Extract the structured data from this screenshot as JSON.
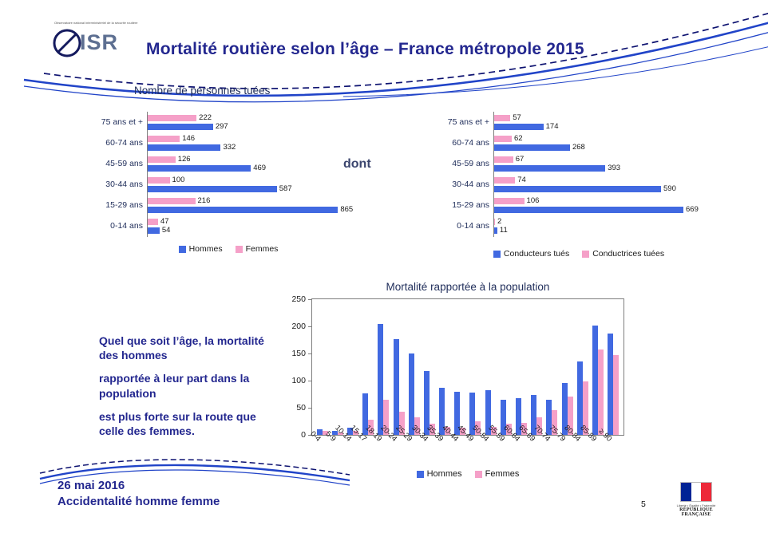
{
  "slide": {
    "logo": {
      "text": "ISR",
      "caption": "Observatoire national interministériel de la sécurité routière"
    },
    "title": "Mortalité routière selon l’âge – France métropole 2015",
    "dont_label": "dont",
    "commentary": [
      "Quel que soit l’âge, la mortalité des hommes",
      "rapportée à leur part dans la population",
      "est plus forte sur la route que celle des femmes."
    ],
    "footer": {
      "date": "26 mai 2016",
      "title": "Accidentalité homme femme",
      "page": "5"
    },
    "gov": {
      "motto": "Liberté • Égalité • Fraternité",
      "name": "RÉPUBLIQUE FRANÇAISE"
    }
  },
  "colors": {
    "hommes": "#4169E1",
    "femmes": "#F5A0C8",
    "accent": "#23278F"
  },
  "chart_data": [
    {
      "id": "persons-killed",
      "type": "bar",
      "orientation": "horizontal",
      "title": "Nombre de personnes tuées",
      "categories": [
        "75 ans et +",
        "60-74 ans",
        "45-59 ans",
        "30-44 ans",
        "15-29 ans",
        "0-14 ans"
      ],
      "series": [
        {
          "name": "Hommes",
          "color": "#4169E1",
          "values": [
            297,
            332,
            469,
            587,
            865,
            54
          ]
        },
        {
          "name": "Femmes",
          "color": "#F5A0C8",
          "values": [
            222,
            146,
            126,
            100,
            216,
            47
          ]
        }
      ],
      "xlim": [
        0,
        900
      ],
      "grid": false,
      "legend_position": "bottom"
    },
    {
      "id": "drivers-killed",
      "type": "bar",
      "orientation": "horizontal",
      "title": "dont (conducteurs)",
      "categories": [
        "75 ans et +",
        "60-74 ans",
        "45-59 ans",
        "30-44 ans",
        "15-29 ans",
        "0-14 ans"
      ],
      "series": [
        {
          "name": "Conducteurs tués",
          "color": "#4169E1",
          "values": [
            174,
            268,
            393,
            590,
            669,
            11
          ]
        },
        {
          "name": "Conductrices tuées",
          "color": "#F5A0C8",
          "values": [
            57,
            62,
            67,
            74,
            106,
            2
          ]
        }
      ],
      "xlim": [
        0,
        700
      ],
      "grid": false,
      "legend_position": "bottom"
    },
    {
      "id": "population-mortality",
      "type": "bar",
      "orientation": "vertical",
      "title": "Mortalité rapportée à la population",
      "categories": [
        "0-4",
        "5-9",
        "10-14",
        "15-17",
        "18-19",
        "20-24",
        "25-29",
        "30-34",
        "35-39",
        "40-44",
        "45-49",
        "50-54",
        "55-59",
        "60-64",
        "65-69",
        "70-74",
        "75-79",
        "80-84",
        "85-89",
        "≥ 90"
      ],
      "series": [
        {
          "name": "Hommes",
          "color": "#4169E1",
          "values": [
            10,
            8,
            13,
            77,
            205,
            177,
            150,
            117,
            87,
            80,
            78,
            83,
            65,
            67,
            73,
            65,
            95,
            135,
            202,
            187
          ]
        },
        {
          "name": "Femmes",
          "color": "#F5A0C8",
          "values": [
            8,
            5,
            7,
            28,
            65,
            43,
            33,
            20,
            14,
            13,
            25,
            14,
            20,
            22,
            33,
            45,
            70,
            98,
            157,
            147
          ]
        }
      ],
      "ylim": [
        0,
        250
      ],
      "yticks": [
        0,
        50,
        100,
        150,
        200,
        250
      ],
      "grid": false,
      "legend_position": "bottom"
    }
  ]
}
